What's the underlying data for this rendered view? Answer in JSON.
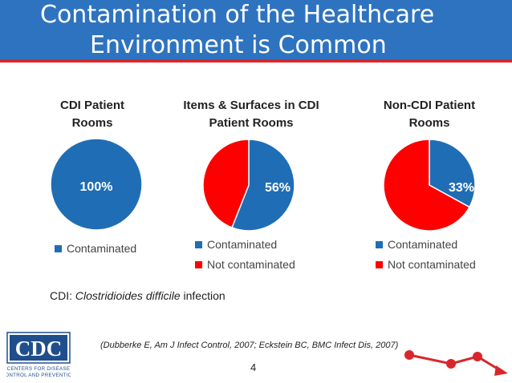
{
  "slide": {
    "title_line1": "Contamination of the Healthcare",
    "title_line2": "Environment is Common",
    "footnote_prefix": "CDI: ",
    "footnote_italic": "Clostridioides difficile",
    "footnote_suffix": " infection",
    "citation": "(Dubberke E, Am J Infect Control, 2007; Eckstein BC, BMC Infect Dis, 2007)",
    "page_number": "4",
    "logo_text": "CDC",
    "logo_tagline1": "CENTERS FOR DISEASE",
    "logo_tagline2": "CONTROL AND PREVENTION"
  },
  "colors": {
    "contaminated": "#1f6db5",
    "not_contaminated": "#ff0000",
    "title_bar": "#2e73c0",
    "accent": "#d9262c"
  },
  "chart_data": [
    {
      "type": "pie",
      "title_line1": "CDI Patient",
      "title_line2": "Rooms",
      "categories": [
        "Contaminated"
      ],
      "values": [
        100
      ],
      "data_labels": [
        "100%"
      ],
      "legend": [
        "Contaminated"
      ],
      "legend_position": "bottom"
    },
    {
      "type": "pie",
      "title_line1": "Items & Surfaces in CDI",
      "title_line2": "Patient Rooms",
      "categories": [
        "Contaminated",
        "Not contaminated"
      ],
      "values": [
        56,
        44
      ],
      "data_labels": [
        "56%"
      ],
      "legend": [
        "Contaminated",
        "Not contaminated"
      ],
      "legend_position": "bottom"
    },
    {
      "type": "pie",
      "title_line1": "Non-CDI Patient",
      "title_line2": "Rooms",
      "categories": [
        "Contaminated",
        "Not contaminated"
      ],
      "values": [
        33,
        67
      ],
      "data_labels": [
        "33%"
      ],
      "legend": [
        "Contaminated",
        "Not contaminated"
      ],
      "legend_position": "bottom"
    }
  ]
}
